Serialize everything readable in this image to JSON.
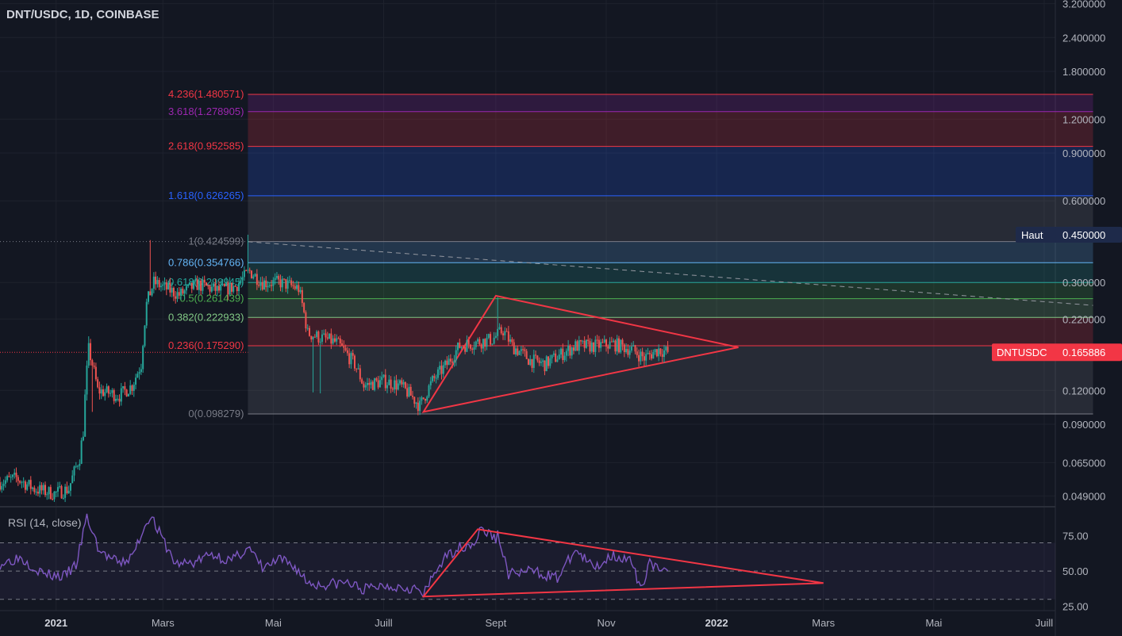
{
  "header": {
    "symbol": "DNT/USDC, 1D, COINBASE"
  },
  "rsi": {
    "label": "RSI (14, close)"
  },
  "colors": {
    "background": "#131722",
    "up": "#26a69a",
    "down": "#ef5350",
    "trend": "#f23645",
    "rsi_line": "#7e57c2",
    "rsi_band": "#7e57c2",
    "fib_red": "#f23645",
    "fib_purple": "#9c27b0",
    "fib_blue": "#2962ff",
    "fib_lightblue": "#64b5f6",
    "fib_teal": "#26a69a",
    "fib_green": "#4caf50",
    "fib_lime": "#81c784",
    "fib_gray": "#787b86",
    "price_label_bg": "#f23645",
    "haut_label_bg": "#1e2a4a"
  },
  "chart_data": [
    {
      "type": "candlestick",
      "title": "DNT/USDC, 1D, COINBASE",
      "scale": "log",
      "ylim": [
        0.045,
        3.3
      ],
      "xlim": [
        "2020-12-01",
        "2022-08-13"
      ],
      "x_ticks": [
        {
          "date": "2021-01-01",
          "label": "2021",
          "bold": true
        },
        {
          "date": "2021-03-01",
          "label": "Mars"
        },
        {
          "date": "2021-05-01",
          "label": "Mai"
        },
        {
          "date": "2021-07-01",
          "label": "Juill"
        },
        {
          "date": "2021-09-01",
          "label": "Sept"
        },
        {
          "date": "2021-11-01",
          "label": "Nov"
        },
        {
          "date": "2022-01-01",
          "label": "2022",
          "bold": true
        },
        {
          "date": "2022-03-01",
          "label": "Mars"
        },
        {
          "date": "2022-05-01",
          "label": "Mai"
        },
        {
          "date": "2022-07-01",
          "label": "Juill"
        }
      ],
      "y_ticks": [
        "3.200000",
        "2.400000",
        "1.800000",
        "1.200000",
        "0.900000",
        "0.600000",
        "0.300000",
        "0.220000",
        "0.120000",
        "0.090000",
        "0.065000",
        "0.049000"
      ],
      "last_price": {
        "label": "DNTUSDC",
        "value": "0.165886"
      },
      "high_marker": {
        "label": "Haut",
        "value": "0.450000"
      },
      "series": [
        {
          "name": "DNTUSDC",
          "anchors": [
            [
              "2020-12-01",
              0.055
            ],
            [
              "2020-12-10",
              0.057
            ],
            [
              "2020-12-20",
              0.052
            ],
            [
              "2020-12-31",
              0.05
            ],
            [
              "2021-01-08",
              0.052
            ],
            [
              "2021-01-14",
              0.068
            ],
            [
              "2021-01-16",
              0.085
            ],
            [
              "2021-01-19",
              0.17
            ],
            [
              "2021-01-24",
              0.12
            ],
            [
              "2021-02-05",
              0.115
            ],
            [
              "2021-02-12",
              0.125
            ],
            [
              "2021-02-17",
              0.15
            ],
            [
              "2021-02-20",
              0.25
            ],
            [
              "2021-02-24",
              0.3
            ],
            [
              "2021-03-10",
              0.27
            ],
            [
              "2021-03-20",
              0.295
            ],
            [
              "2021-04-01",
              0.28
            ],
            [
              "2021-04-10",
              0.29
            ],
            [
              "2021-04-18",
              0.33
            ],
            [
              "2021-04-25",
              0.3
            ],
            [
              "2021-05-05",
              0.3
            ],
            [
              "2021-05-15",
              0.285
            ],
            [
              "2021-05-20",
              0.195
            ],
            [
              "2021-05-25",
              0.19
            ],
            [
              "2021-06-05",
              0.18
            ],
            [
              "2021-06-15",
              0.15
            ],
            [
              "2021-06-20",
              0.125
            ],
            [
              "2021-07-01",
              0.13
            ],
            [
              "2021-07-10",
              0.125
            ],
            [
              "2021-07-16",
              0.115
            ],
            [
              "2021-07-21",
              0.105
            ],
            [
              "2021-07-28",
              0.13
            ],
            [
              "2021-08-05",
              0.15
            ],
            [
              "2021-08-12",
              0.175
            ],
            [
              "2021-08-20",
              0.18
            ],
            [
              "2021-08-30",
              0.185
            ],
            [
              "2021-09-05",
              0.2
            ],
            [
              "2021-09-10",
              0.175
            ],
            [
              "2021-09-20",
              0.155
            ],
            [
              "2021-09-28",
              0.15
            ],
            [
              "2021-10-05",
              0.16
            ],
            [
              "2021-10-15",
              0.175
            ],
            [
              "2021-10-25",
              0.175
            ],
            [
              "2021-11-05",
              0.178
            ],
            [
              "2021-11-15",
              0.17
            ],
            [
              "2021-11-22",
              0.158
            ],
            [
              "2021-11-30",
              0.17
            ],
            [
              "2021-12-05",
              0.166
            ]
          ],
          "wick_spikes": [
            {
              "date": "2021-01-19",
              "high": 0.19
            },
            {
              "date": "2021-02-22",
              "high": 0.43
            },
            {
              "date": "2021-04-17",
              "high": 0.45
            },
            {
              "date": "2021-09-02",
              "high": 0.265
            },
            {
              "date": "2021-05-23",
              "low": 0.118
            },
            {
              "date": "2021-05-27",
              "low": 0.117
            },
            {
              "date": "2021-01-21",
              "low": 0.1
            }
          ]
        }
      ],
      "annotations": {
        "fib_extension": {
          "levels": [
            {
              "ratio": "4.236",
              "value": "1.480571",
              "label": "4.236(1.480571)",
              "color": "#f23645"
            },
            {
              "ratio": "3.618",
              "value": "1.278905",
              "label": "3.618(1.278905)",
              "color": "#9c27b0"
            },
            {
              "ratio": "2.618",
              "value": "0.952585",
              "label": "2.618(0.952585)",
              "color": "#f23645"
            },
            {
              "ratio": "1.618",
              "value": "0.626265",
              "label": "1.618(0.626265)",
              "color": "#2962ff"
            },
            {
              "ratio": "1",
              "value": "0.424599",
              "label": "1(0.424599)",
              "color": "#787b86"
            },
            {
              "ratio": "0.786",
              "value": "0.354766",
              "label": "0.786(0.354766)",
              "color": "#64b5f6"
            },
            {
              "ratio": "0.618",
              "value": "0.299945",
              "label": "0.618(0.299945)",
              "color": "#26a69a"
            },
            {
              "ratio": "0.5",
              "value": "0.261439",
              "label": "0.5(0.261439)",
              "color": "#4caf50"
            },
            {
              "ratio": "0.382",
              "value": "0.222933",
              "label": "0.382(0.222933)",
              "color": "#81c784"
            },
            {
              "ratio": "0.236",
              "value": "0.175290",
              "label": "0.236(0.175290)",
              "color": "#f23645"
            },
            {
              "ratio": "0",
              "value": "0.098279",
              "label": "0(0.098279)",
              "color": "#787b86"
            }
          ],
          "start_date": "2021-04-17",
          "end_date": "2022-07-28"
        },
        "triangle": [
          [
            "2021-09-01",
            0.268
          ],
          [
            "2022-01-13",
            0.173
          ],
          [
            "2021-07-23",
            0.1
          ]
        ],
        "dashed_trendline": [
          [
            "2021-04-17",
            0.424
          ],
          [
            "2022-07-28",
            0.247
          ]
        ]
      }
    },
    {
      "type": "line",
      "title": "RSI (14, close)",
      "ylim": [
        22,
        95
      ],
      "y_ticks": [
        "75.00",
        "50.00",
        "25.00"
      ],
      "bands": [
        30,
        50,
        70
      ],
      "series": [
        {
          "name": "RSI",
          "anchors": [
            [
              "2020-12-01",
              55
            ],
            [
              "2020-12-12",
              60
            ],
            [
              "2020-12-25",
              48
            ],
            [
              "2021-01-05",
              46
            ],
            [
              "2021-01-12",
              54
            ],
            [
              "2021-01-18",
              88
            ],
            [
              "2021-01-25",
              64
            ],
            [
              "2021-02-05",
              55
            ],
            [
              "2021-02-12",
              60
            ],
            [
              "2021-02-18",
              79
            ],
            [
              "2021-02-22",
              90
            ],
            [
              "2021-03-01",
              72
            ],
            [
              "2021-03-08",
              55
            ],
            [
              "2021-03-18",
              56
            ],
            [
              "2021-03-28",
              62
            ],
            [
              "2021-04-08",
              57
            ],
            [
              "2021-04-17",
              67
            ],
            [
              "2021-04-25",
              52
            ],
            [
              "2021-05-05",
              58
            ],
            [
              "2021-05-13",
              53
            ],
            [
              "2021-05-20",
              42
            ],
            [
              "2021-05-27",
              40
            ],
            [
              "2021-06-10",
              42
            ],
            [
              "2021-06-20",
              37
            ],
            [
              "2021-07-01",
              40
            ],
            [
              "2021-07-10",
              39
            ],
            [
              "2021-07-18",
              38
            ],
            [
              "2021-07-23",
              33
            ],
            [
              "2021-08-01",
              55
            ],
            [
              "2021-08-10",
              66
            ],
            [
              "2021-08-20",
              70
            ],
            [
              "2021-08-24",
              80
            ],
            [
              "2021-09-01",
              73
            ],
            [
              "2021-09-02",
              76
            ],
            [
              "2021-09-08",
              48
            ],
            [
              "2021-09-22",
              50
            ],
            [
              "2021-10-05",
              45
            ],
            [
              "2021-10-15",
              65
            ],
            [
              "2021-10-25",
              52
            ],
            [
              "2021-11-05",
              62
            ],
            [
              "2021-11-15",
              56
            ],
            [
              "2021-11-20",
              36
            ],
            [
              "2021-11-25",
              58
            ],
            [
              "2021-12-01",
              48
            ],
            [
              "2021-12-05",
              50
            ]
          ]
        }
      ],
      "annotations": {
        "triangle": [
          [
            "2021-08-22",
            79.6
          ],
          [
            "2022-03-01",
            41.5
          ],
          [
            "2021-07-23",
            32.0
          ]
        ]
      }
    }
  ]
}
